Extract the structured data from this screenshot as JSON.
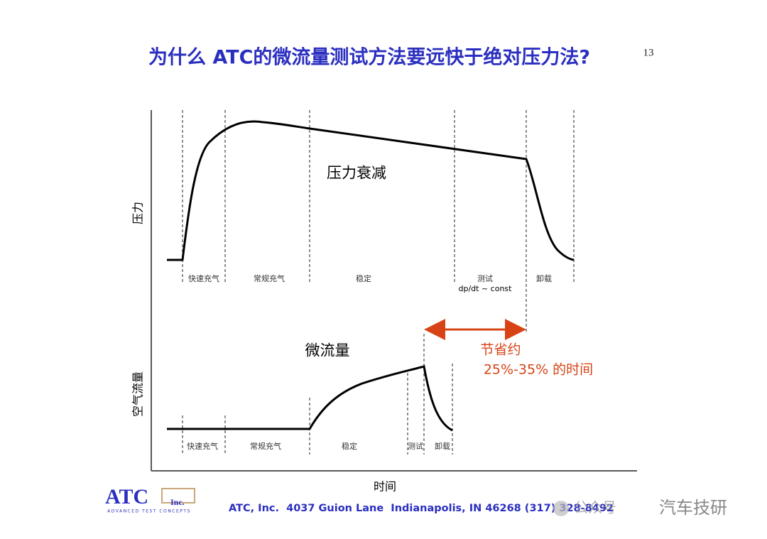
{
  "header": {
    "title": "为什么 ATC的微流量测试方法要远快于绝对压力法?",
    "page_number": "13"
  },
  "diagram": {
    "y_label_top": "压力",
    "y_label_bottom": "空气流量",
    "x_label": "时间",
    "top_phases": [
      "快速充气",
      "常规充气",
      "稳定",
      "测试",
      "卸载"
    ],
    "top_note": "dp/dt ~ const",
    "top_curve_label": "压力衰减",
    "bottom_curve_label": "微流量",
    "bottom_phases": [
      "快速充气",
      "常规充气",
      "稳定",
      "测试",
      "卸载"
    ],
    "saving_line1": "节省约",
    "saving_line2": "25%-35% 的时间"
  },
  "footer": {
    "logo": "ATC",
    "logo_suffix": "Inc.",
    "logo_tagline": "ADVANCED TEST CONCEPTS",
    "address": "ATC, Inc.  4037 Guion Lane  Indianapolis, IN 46268 (317) 328-8492",
    "watermark_account": "公众号",
    "watermark_name": "汽车技研"
  }
}
